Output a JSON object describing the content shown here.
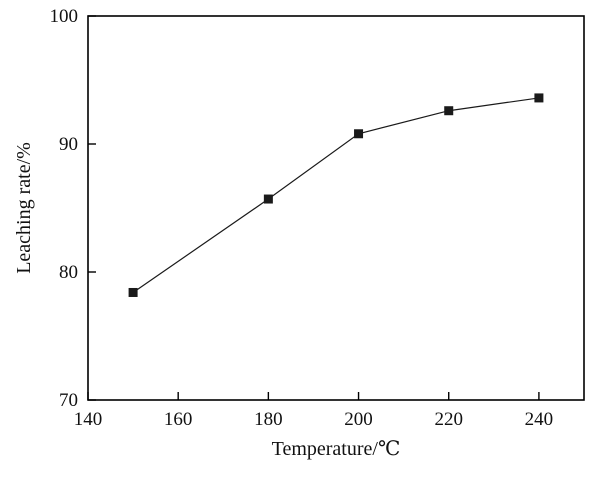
{
  "chart_data": {
    "type": "line",
    "title": "",
    "xlabel": "Temperature/℃",
    "ylabel": "Leaching rate/%",
    "x": [
      150,
      180,
      200,
      220,
      240
    ],
    "series": [
      {
        "name": "Leaching rate",
        "values": [
          78.4,
          85.7,
          90.8,
          92.6,
          93.6
        ]
      }
    ],
    "xlim": [
      140,
      250
    ],
    "ylim": [
      70,
      100
    ],
    "xticks": [
      140,
      160,
      180,
      200,
      220,
      240
    ],
    "yticks": [
      70,
      80,
      90,
      100
    ],
    "grid": false,
    "legend": "none",
    "marker": "filled-square",
    "line_color": "#1a1a1a",
    "marker_color": "#1a1a1a",
    "axis_color": "#000000",
    "background_color": "#ffffff"
  }
}
